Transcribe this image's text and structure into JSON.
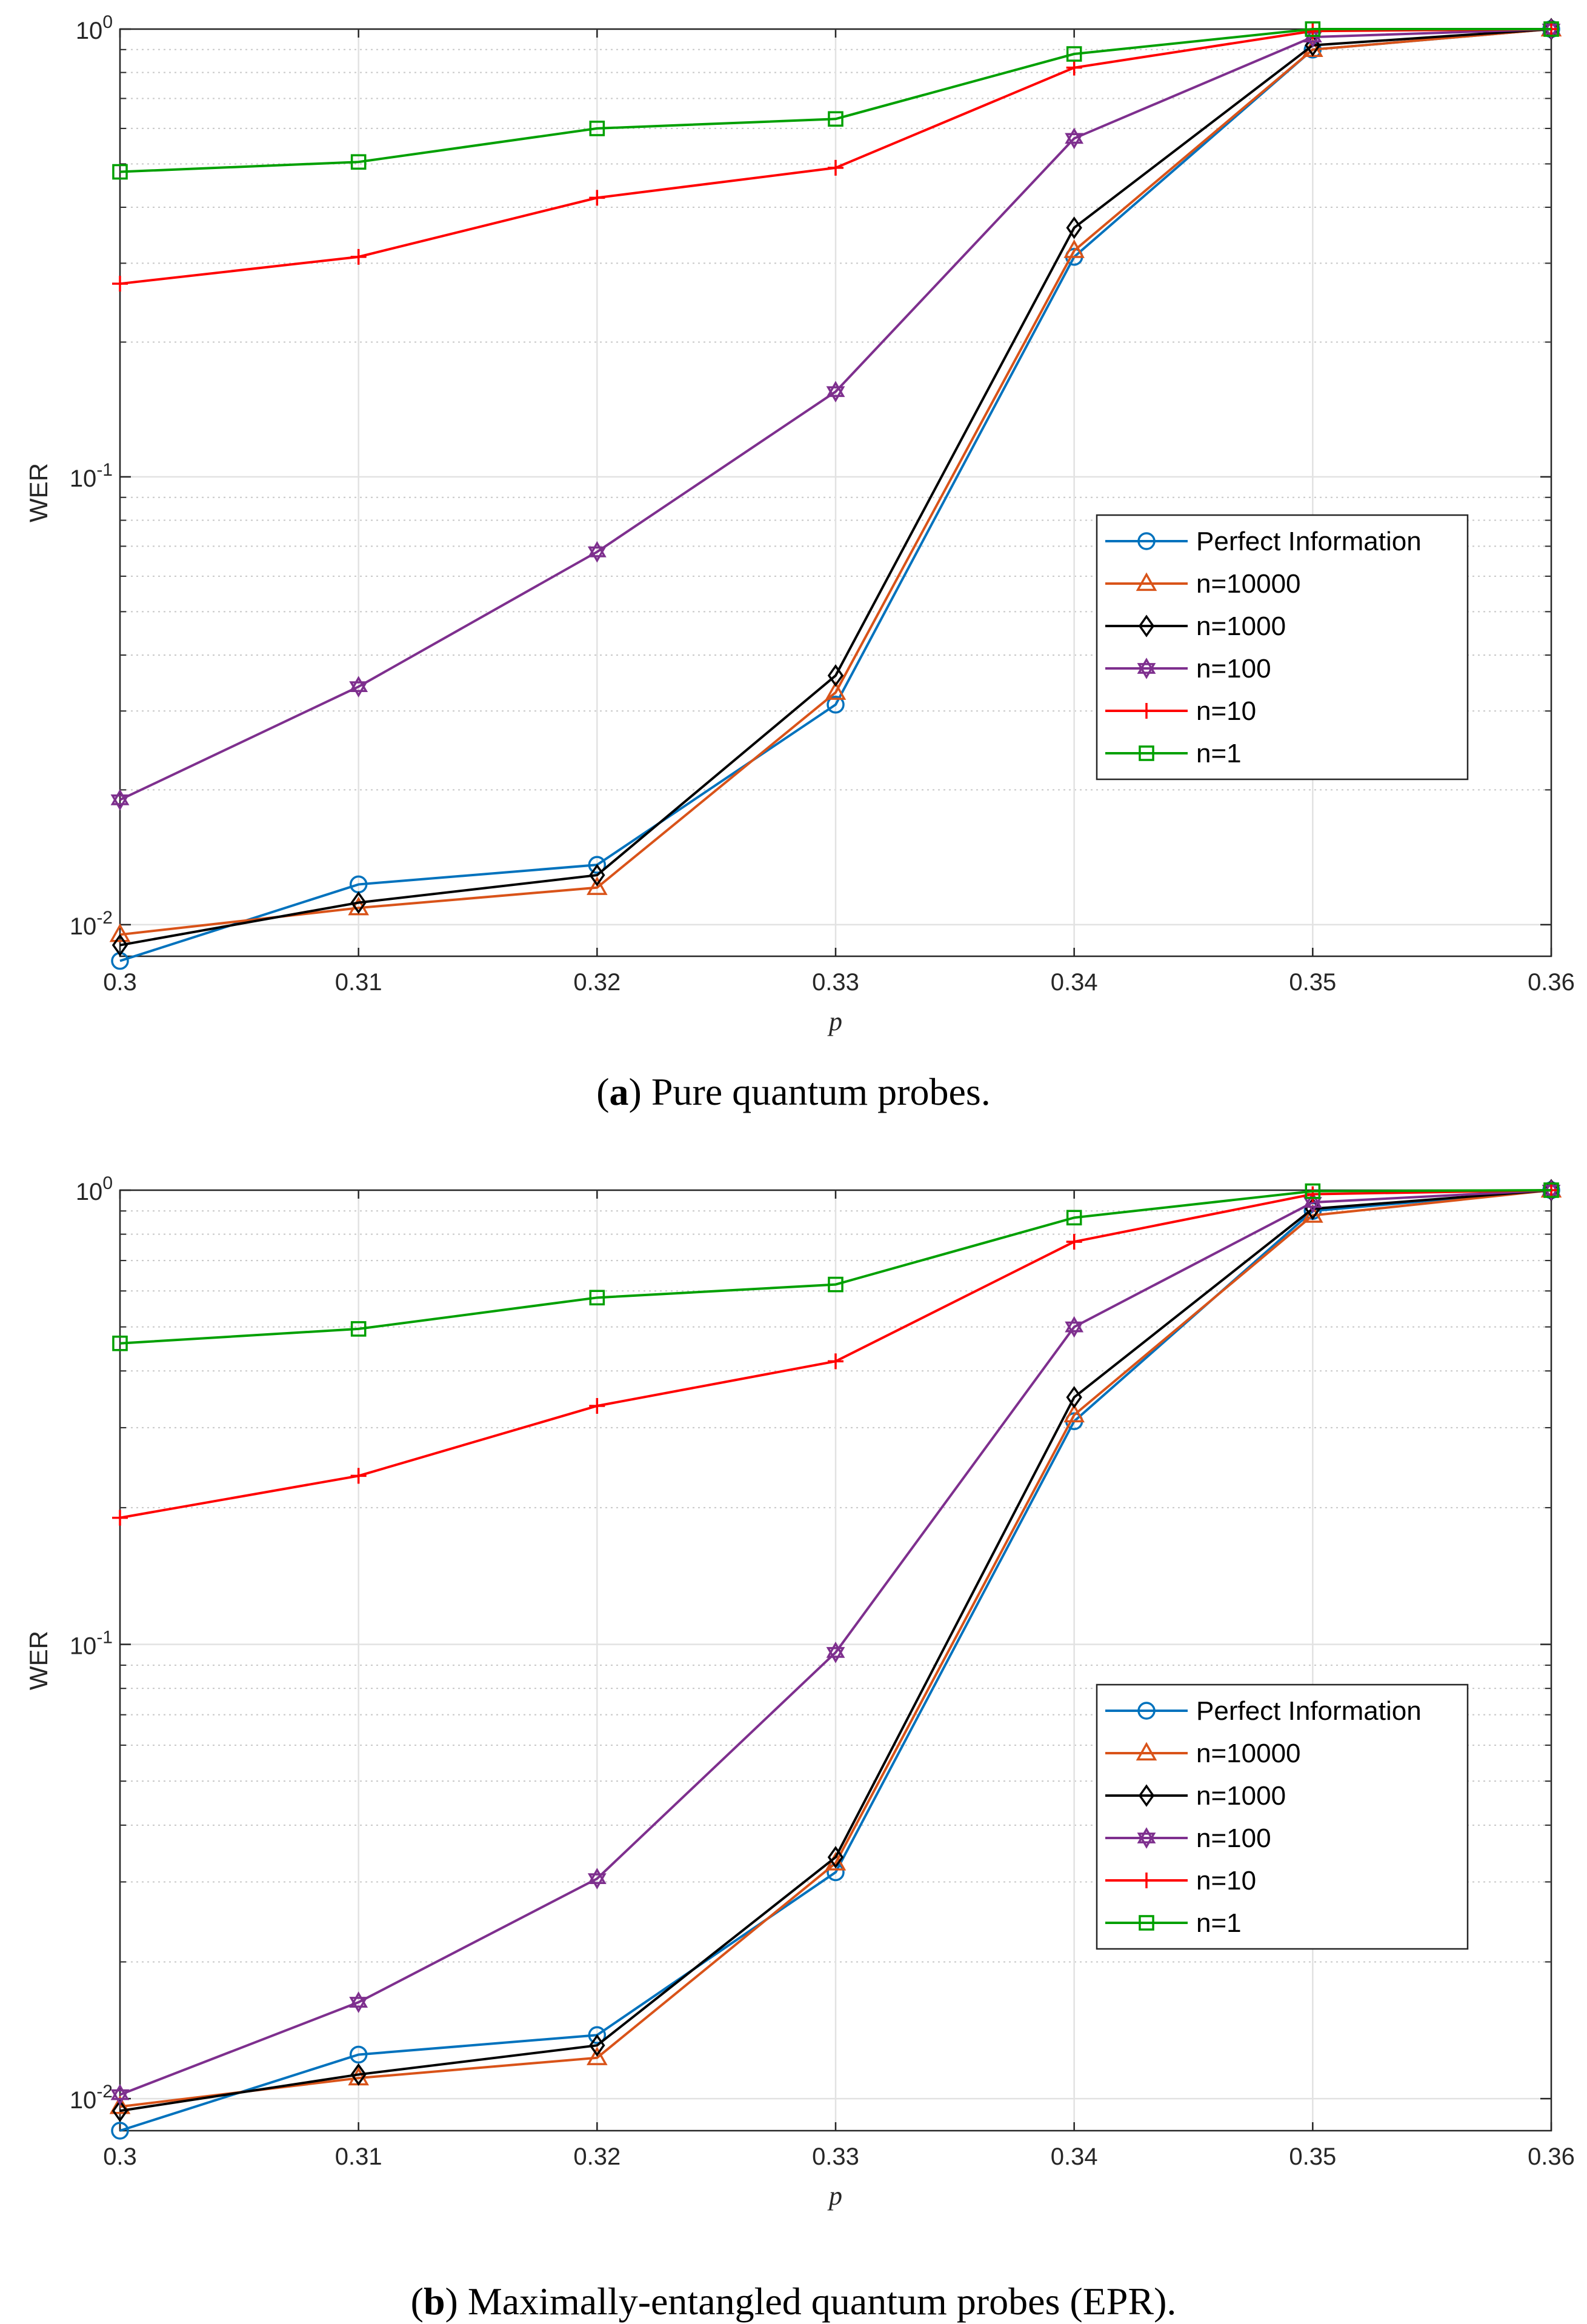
{
  "chart_data": [
    {
      "type": "line",
      "panel": "a",
      "caption_label": "a",
      "caption_text": "Pure quantum probes.",
      "xlabel": "p",
      "ylabel": "WER",
      "yscale": "log",
      "xlim": [
        0.3,
        0.36
      ],
      "ylim": [
        0.0085,
        1
      ],
      "x": [
        0.3,
        0.31,
        0.32,
        0.33,
        0.34,
        0.35,
        0.36
      ],
      "xticks": [
        "0.3",
        "0.31",
        "0.32",
        "0.33",
        "0.34",
        "0.35",
        "0.36"
      ],
      "yticks": [
        {
          "mant": "10",
          "exp": "-2",
          "value": 0.01
        },
        {
          "mant": "10",
          "exp": "-1",
          "value": 0.1
        },
        {
          "mant": "10",
          "exp": "0",
          "value": 1
        }
      ],
      "grid": true,
      "legend_position": "right",
      "series": [
        {
          "name": "Perfect Information",
          "color": "#0072BD",
          "marker": "circle",
          "values": [
            0.0083,
            0.0123,
            0.0136,
            0.031,
            0.31,
            0.9,
            1.0
          ]
        },
        {
          "name": "n=10000",
          "color": "#D95319",
          "marker": "triangle",
          "values": [
            0.0095,
            0.0109,
            0.0121,
            0.033,
            0.32,
            0.9,
            1.0
          ]
        },
        {
          "name": "n=1000",
          "color": "#000000",
          "marker": "diamond",
          "values": [
            0.009,
            0.0112,
            0.0129,
            0.036,
            0.36,
            0.92,
            1.0
          ]
        },
        {
          "name": "n=100",
          "color": "#7E2F8E",
          "marker": "hexagram",
          "values": [
            0.019,
            0.034,
            0.068,
            0.155,
            0.57,
            0.96,
            1.0
          ]
        },
        {
          "name": "n=10",
          "color": "#FF0000",
          "marker": "plus",
          "values": [
            0.27,
            0.31,
            0.42,
            0.49,
            0.82,
            0.99,
            1.0
          ]
        },
        {
          "name": "n=1",
          "color": "#00A000",
          "marker": "square",
          "values": [
            0.48,
            0.505,
            0.6,
            0.63,
            0.88,
            1.0,
            1.0
          ]
        }
      ]
    },
    {
      "type": "line",
      "panel": "b",
      "caption_label": "b",
      "caption_text": "Maximally-entangled quantum probes (EPR).",
      "xlabel": "p",
      "ylabel": "WER",
      "yscale": "log",
      "xlim": [
        0.3,
        0.36
      ],
      "ylim": [
        0.0085,
        1
      ],
      "x": [
        0.3,
        0.31,
        0.32,
        0.33,
        0.34,
        0.35,
        0.36
      ],
      "xticks": [
        "0.3",
        "0.31",
        "0.32",
        "0.33",
        "0.34",
        "0.35",
        "0.36"
      ],
      "yticks": [
        {
          "mant": "10",
          "exp": "-2",
          "value": 0.01
        },
        {
          "mant": "10",
          "exp": "-1",
          "value": 0.1
        },
        {
          "mant": "10",
          "exp": "0",
          "value": 1
        }
      ],
      "grid": true,
      "legend_position": "right",
      "series": [
        {
          "name": "Perfect Information",
          "color": "#0072BD",
          "marker": "circle",
          "values": [
            0.0085,
            0.0125,
            0.0138,
            0.0315,
            0.31,
            0.9,
            1.0
          ]
        },
        {
          "name": "n=10000",
          "color": "#D95319",
          "marker": "triangle",
          "values": [
            0.0096,
            0.0111,
            0.0123,
            0.033,
            0.32,
            0.88,
            1.0
          ]
        },
        {
          "name": "n=1000",
          "color": "#000000",
          "marker": "diamond",
          "values": [
            0.0094,
            0.0113,
            0.0131,
            0.034,
            0.35,
            0.91,
            1.0
          ]
        },
        {
          "name": "n=100",
          "color": "#7E2F8E",
          "marker": "hexagram",
          "values": [
            0.0102,
            0.0163,
            0.0305,
            0.096,
            0.5,
            0.94,
            1.0
          ]
        },
        {
          "name": "n=10",
          "color": "#FF0000",
          "marker": "plus",
          "values": [
            0.19,
            0.235,
            0.335,
            0.42,
            0.77,
            0.98,
            1.0
          ]
        },
        {
          "name": "n=1",
          "color": "#00A000",
          "marker": "square",
          "values": [
            0.46,
            0.495,
            0.58,
            0.62,
            0.87,
            0.995,
            1.0
          ]
        }
      ]
    }
  ]
}
